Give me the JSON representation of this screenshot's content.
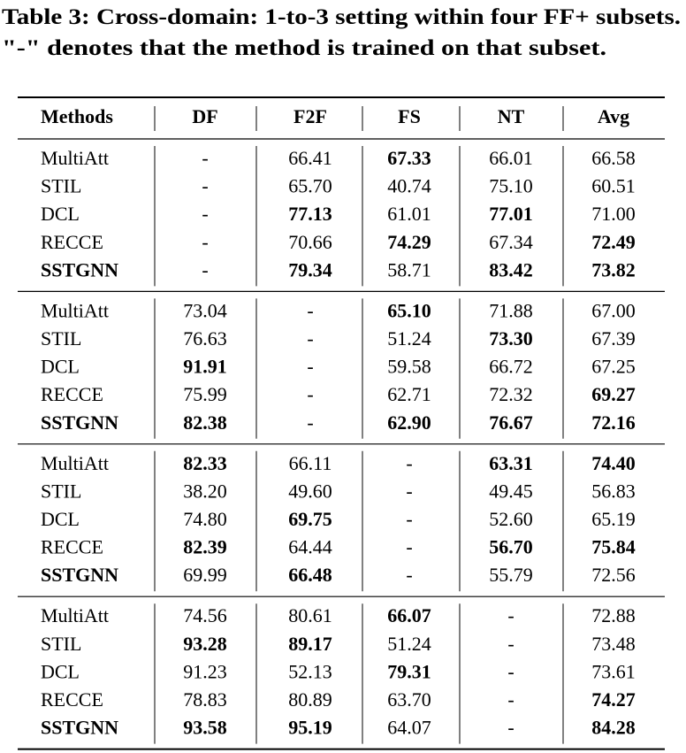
{
  "caption": {
    "line1": "Table 3: Cross-domain: 1-to-3 setting within four FF+ subsets.",
    "line2": "\"-\" denotes that the method is trained on that subset."
  },
  "table": {
    "header": [
      "Methods",
      "DF",
      "F2F",
      "FS",
      "NT",
      "Avg"
    ],
    "groups": [
      {
        "rows": [
          {
            "method": "MultiAtt",
            "cells": [
              "-",
              "66.41",
              {
                "text": "67.33",
                "color": "#1f1fd6"
              },
              "66.01",
              "66.58"
            ]
          },
          {
            "method": "STIL",
            "cells": [
              "-",
              "65.70",
              "40.74",
              "75.10",
              "60.51"
            ]
          },
          {
            "method": "DCL",
            "cells": [
              "-",
              {
                "text": "77.13",
                "color": "#1f1fd6"
              },
              "61.01",
              {
                "text": "77.01",
                "color": "#1f1fd6"
              },
              "71.00"
            ]
          },
          {
            "method": "RECCE",
            "cells": [
              "-",
              "70.66",
              {
                "text": "74.29",
                "color": "#e8202a"
              },
              "67.34",
              {
                "text": "72.49",
                "color": "#1f1fd6"
              }
            ]
          },
          {
            "method": "SSTGNN",
            "bold": true,
            "cells": [
              "-",
              {
                "text": "79.34",
                "color": "#e8202a"
              },
              "58.71",
              {
                "text": "83.42",
                "color": "#e8202a"
              },
              {
                "text": "73.82",
                "color": "#e8202a"
              }
            ]
          }
        ]
      },
      {
        "rows": [
          {
            "method": "MultiAtt",
            "cells": [
              "73.04",
              "-",
              {
                "text": "65.10",
                "color": "#e8202a"
              },
              "71.88",
              "67.00"
            ]
          },
          {
            "method": "STIL",
            "cells": [
              "76.63",
              "-",
              "51.24",
              {
                "text": "73.30",
                "color": "#1f1fd6"
              },
              "67.39"
            ]
          },
          {
            "method": "DCL",
            "cells": [
              {
                "text": "91.91",
                "color": "#e8202a"
              },
              "-",
              "59.58",
              "66.72",
              "67.25"
            ]
          },
          {
            "method": "RECCE",
            "cells": [
              "75.99",
              "-",
              "62.71",
              "72.32",
              {
                "text": "69.27",
                "color": "#1f1fd6"
              }
            ]
          },
          {
            "method": "SSTGNN",
            "bold": true,
            "cells": [
              {
                "text": "82.38",
                "color": "#1f1fd6"
              },
              "-",
              {
                "text": "62.90",
                "color": "#1f1fd6"
              },
              {
                "text": "76.67",
                "color": "#e8202a"
              },
              {
                "text": "72.16",
                "color": "#e8202a"
              }
            ]
          }
        ]
      },
      {
        "rows": [
          {
            "method": "MultiAtt",
            "cells": [
              {
                "text": "82.33",
                "color": "#1f1fd6"
              },
              "66.11",
              "-",
              {
                "text": "63.31",
                "color": "#e8202a"
              },
              {
                "text": "74.40",
                "color": "#1f1fd6"
              }
            ]
          },
          {
            "method": "STIL",
            "cells": [
              "38.20",
              "49.60",
              "-",
              "49.45",
              "56.83"
            ]
          },
          {
            "method": "DCL",
            "cells": [
              "74.80",
              {
                "text": "69.75",
                "color": "#e8202a"
              },
              "-",
              "52.60",
              "65.19"
            ]
          },
          {
            "method": "RECCE",
            "cells": [
              {
                "text": "82.39",
                "color": "#e8202a"
              },
              "64.44",
              "-",
              {
                "text": "56.70",
                "color": "#1f1fd6"
              },
              {
                "text": "75.84",
                "color": "#e8202a"
              }
            ]
          },
          {
            "method": "SSTGNN",
            "bold": true,
            "cells": [
              "69.99",
              {
                "text": "66.48",
                "color": "#1f1fd6"
              },
              "-",
              "55.79",
              "72.56"
            ]
          }
        ]
      },
      {
        "rows": [
          {
            "method": "MultiAtt",
            "cells": [
              "74.56",
              "80.61",
              {
                "text": "66.07",
                "color": "#1f1fd6"
              },
              "-",
              "72.88"
            ]
          },
          {
            "method": "STIL",
            "cells": [
              {
                "text": "93.28",
                "color": "#1f1fd6"
              },
              {
                "text": "89.17",
                "color": "#1f1fd6"
              },
              "51.24",
              "-",
              "73.48"
            ]
          },
          {
            "method": "DCL",
            "cells": [
              "91.23",
              "52.13",
              {
                "text": "79.31",
                "color": "#e8202a"
              },
              "-",
              "73.61"
            ]
          },
          {
            "method": "RECCE",
            "cells": [
              "78.83",
              "80.89",
              "63.70",
              "-",
              {
                "text": "74.27",
                "color": "#1f1fd6"
              }
            ]
          },
          {
            "method": "SSTGNN",
            "bold": true,
            "cells": [
              {
                "text": "93.58",
                "color": "#e8202a"
              },
              {
                "text": "95.19",
                "color": "#e8202a"
              },
              "64.07",
              "-",
              {
                "text": "84.28",
                "color": "#e8202a"
              }
            ]
          }
        ]
      }
    ]
  }
}
